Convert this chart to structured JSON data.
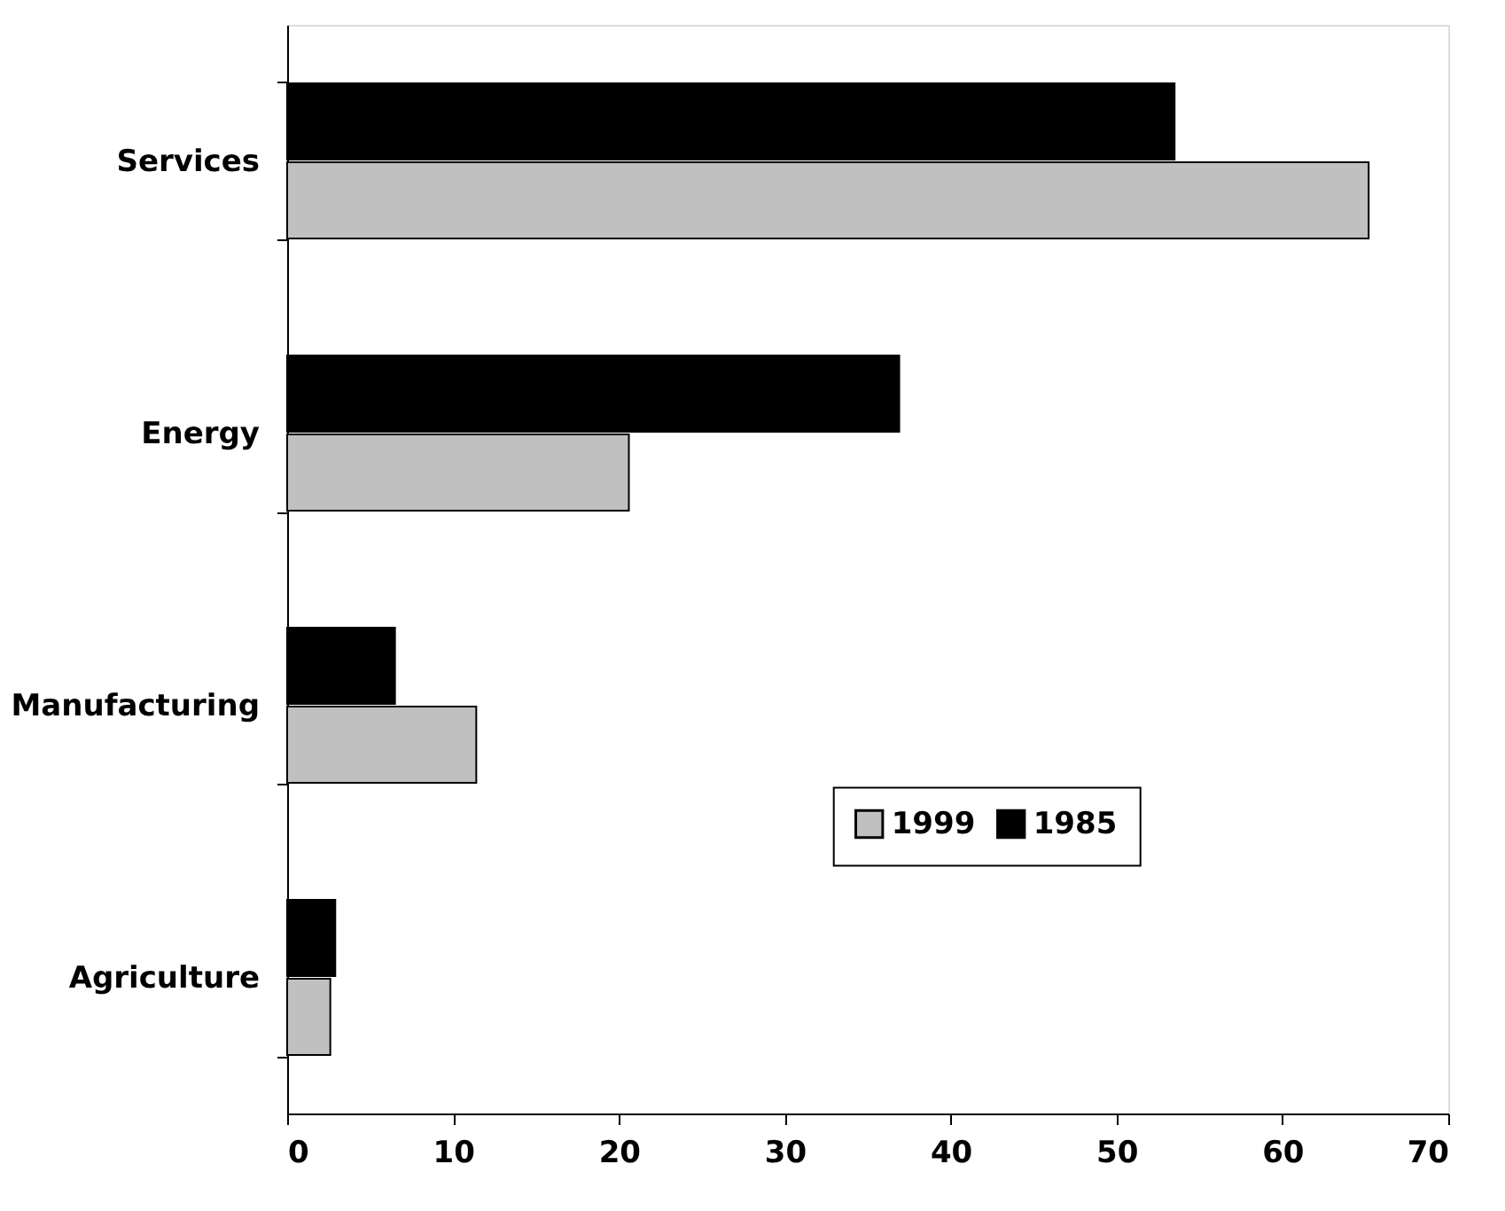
{
  "chart_data": {
    "type": "bar",
    "orientation": "horizontal",
    "categories": [
      "Services",
      "Energy",
      "Manufacturing",
      "Agriculture"
    ],
    "series": [
      {
        "name": "1985",
        "color": "#000000",
        "values": [
          53.5,
          36.9,
          6.5,
          2.9
        ]
      },
      {
        "name": "1999",
        "color": "#c0c0c0",
        "values": [
          65.2,
          20.6,
          11.4,
          2.6
        ]
      }
    ],
    "xlim": [
      0,
      70
    ],
    "xticks": [
      0,
      10,
      20,
      30,
      40,
      50,
      60,
      70
    ],
    "grid": false,
    "legend": "bottom right"
  }
}
